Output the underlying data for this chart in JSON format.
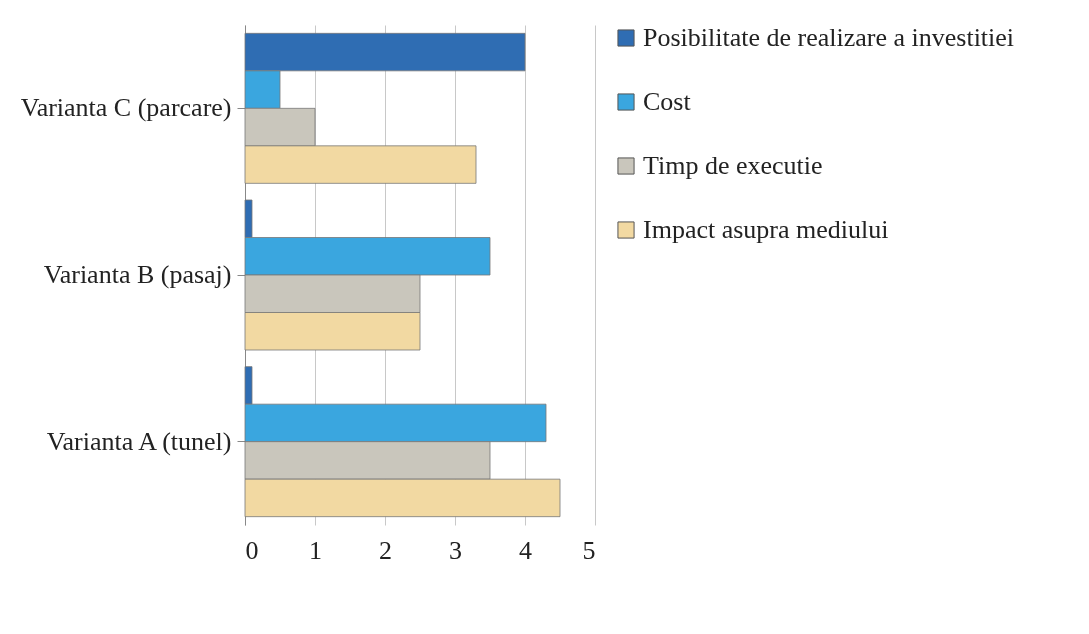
{
  "chart_data": {
    "type": "bar",
    "orientation": "horizontal",
    "categories": [
      "Varianta C (parcare)",
      "Varianta B (pasaj)",
      "Varianta A (tunel)"
    ],
    "series": [
      {
        "name": "Posibilitate de realizare a investitiei",
        "color": "#2f6db3",
        "values": [
          4,
          0.1,
          0.1
        ]
      },
      {
        "name": "Cost",
        "color": "#3aa6df",
        "values": [
          0.5,
          3.5,
          4.3
        ]
      },
      {
        "name": "Timp de executie",
        "color": "#c9c6bc",
        "values": [
          1,
          2.5,
          3.5
        ]
      },
      {
        "name": "Impact asupra mediului",
        "color": "#f2d9a2",
        "values": [
          3.3,
          2.5,
          4.5
        ]
      }
    ],
    "xlim": [
      0,
      5
    ],
    "xticks": [
      0,
      1,
      2,
      3,
      4,
      5
    ],
    "grid": "x",
    "legend": "right"
  }
}
